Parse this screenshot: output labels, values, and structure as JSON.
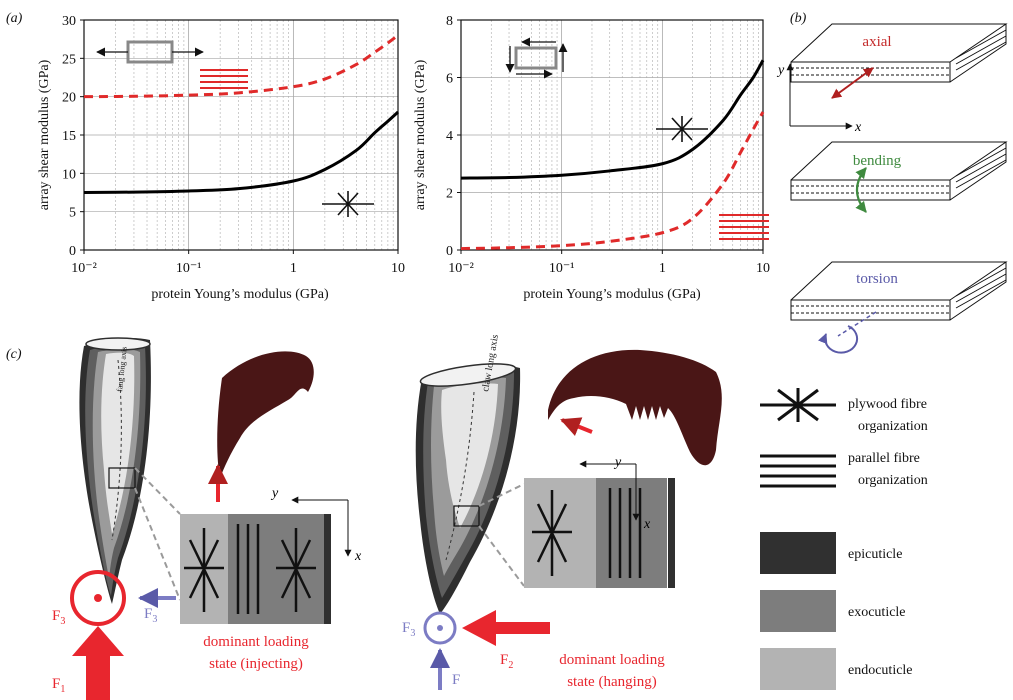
{
  "panels": {
    "a": "(a)",
    "b": "(b)",
    "c": "(c)"
  },
  "chart_data": [
    {
      "type": "line",
      "xscale": "log",
      "xlim": [
        0.01,
        10
      ],
      "ylim": [
        0,
        30
      ],
      "xlabel": "protein Young’s modulus (GPa)",
      "ylabel": "array shear modulus (GPa)",
      "x_tick_labels": [
        "10⁻²",
        "10⁻¹",
        "1",
        "10"
      ],
      "y_tick_labels": [
        "0",
        "5",
        "10",
        "15",
        "20",
        "25",
        "30"
      ],
      "y_ticks": [
        0,
        5,
        10,
        15,
        20,
        25,
        30
      ],
      "grid": true,
      "series": [
        {
          "style": "dashed",
          "color": "#e02a2a",
          "marker": "parallel",
          "x": [
            0.01,
            0.03,
            0.1,
            0.3,
            1,
            2,
            4,
            6,
            8,
            10
          ],
          "y": [
            20.0,
            20.05,
            20.2,
            20.5,
            21.3,
            22.3,
            24.2,
            25.8,
            27.0,
            28.0
          ]
        },
        {
          "style": "solid",
          "color": "#000000",
          "marker": "plywood",
          "x": [
            0.01,
            0.03,
            0.1,
            0.3,
            1,
            2,
            4,
            6,
            8,
            10
          ],
          "y": [
            7.5,
            7.55,
            7.7,
            8.0,
            9.0,
            10.5,
            13.0,
            15.3,
            16.8,
            18.0
          ]
        }
      ]
    },
    {
      "type": "line",
      "xscale": "log",
      "xlim": [
        0.01,
        10
      ],
      "ylim": [
        0,
        8
      ],
      "xlabel": "protein Young’s modulus (GPa)",
      "ylabel": "array shear modulus (GPa)",
      "x_tick_labels": [
        "10⁻²",
        "10⁻¹",
        "1",
        "10"
      ],
      "y_tick_labels": [
        "0",
        "2",
        "4",
        "6",
        "8"
      ],
      "y_ticks": [
        0,
        2,
        4,
        6,
        8
      ],
      "grid": true,
      "series": [
        {
          "style": "solid",
          "color": "#000000",
          "marker": "plywood",
          "x": [
            0.01,
            0.03,
            0.1,
            0.3,
            1,
            2,
            4,
            6,
            8,
            10
          ],
          "y": [
            2.5,
            2.52,
            2.6,
            2.75,
            3.0,
            3.5,
            4.5,
            5.4,
            6.0,
            6.6
          ]
        },
        {
          "style": "dashed",
          "color": "#e02a2a",
          "marker": "parallel",
          "x": [
            0.01,
            0.03,
            0.1,
            0.3,
            1,
            2,
            4,
            6,
            8,
            10
          ],
          "y": [
            0.05,
            0.08,
            0.15,
            0.3,
            0.6,
            1.1,
            2.3,
            3.4,
            4.2,
            4.8
          ]
        }
      ]
    }
  ],
  "panel_b": {
    "axis_y": "y",
    "axis_x": "x",
    "modes": [
      {
        "label": "axial",
        "color": "#c42a2a"
      },
      {
        "label": "bending",
        "color": "#3f8a3f"
      },
      {
        "label": "torsion",
        "color": "#5a5aa8"
      }
    ]
  },
  "panel_c": {
    "fang_axis": "fang long axis",
    "claw_axis": "claw long axis",
    "axis_y": "y",
    "axis_x": "x",
    "forces": {
      "f1": "F",
      "f1_sub": "1",
      "f2": "F",
      "f2_sub": "2",
      "f3": "F",
      "f3_sub": "3",
      "f": "F"
    },
    "caption_left_1": "dominant loading",
    "caption_left_2": "state (injecting)",
    "caption_right_1": "dominant loading",
    "caption_right_2": "state (hanging)",
    "colors": {
      "red": "#e8262e",
      "blue": "#7c7cc4",
      "epi": "#303030",
      "exo": "#7d7d7d",
      "endo": "#b3b3b3",
      "claw": "#4a1616"
    }
  },
  "legend": {
    "plywood_1": "plywood fibre",
    "plywood_2": "organization",
    "parallel_1": "parallel fibre",
    "parallel_2": "organization",
    "epicuticle": "epicuticle",
    "exocuticle": "exocuticle",
    "endocuticle": "endocuticle"
  }
}
